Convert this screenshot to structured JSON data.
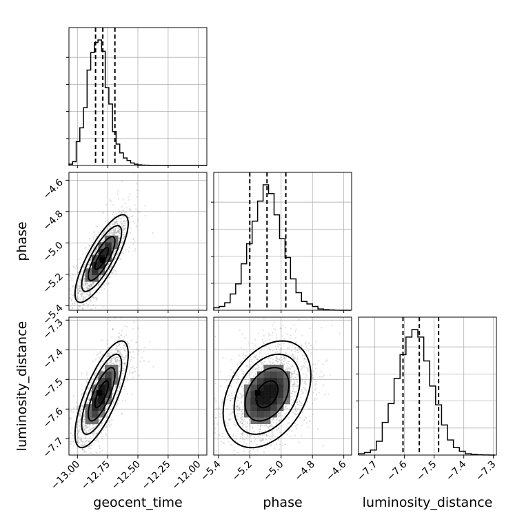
{
  "chart_data": {
    "type": "corner",
    "parameters": [
      "geocent_time",
      "phase",
      "luminosity_distance"
    ],
    "grid": true,
    "ranges": {
      "geocent_time": [
        -13.07,
        -11.93
      ],
      "phase": [
        -5.43,
        -4.55
      ],
      "luminosity_distance": [
        -7.755,
        -7.29
      ]
    },
    "ticks": {
      "geocent_time": [
        "−13.00",
        "−12.75",
        "−12.50",
        "−12.25",
        "−12.00"
      ],
      "phase": [
        "−5.4",
        "−5.2",
        "−5.0",
        "−4.8",
        "−4.6"
      ],
      "luminosity_distance": [
        "−7.7",
        "−7.6",
        "−7.5",
        "−7.4",
        "−7.3"
      ]
    },
    "tick_values": {
      "geocent_time": [
        -13.0,
        -12.75,
        -12.5,
        -12.25,
        -12.0
      ],
      "phase": [
        -5.4,
        -5.2,
        -5.0,
        -4.8,
        -4.6
      ],
      "luminosity_distance": [
        -7.7,
        -7.6,
        -7.5,
        -7.4,
        -7.3
      ]
    },
    "marginals": {
      "geocent_time": {
        "bin_edges": [
          -13.07,
          -13.04,
          -13.01,
          -12.98,
          -12.95,
          -12.92,
          -12.89,
          -12.86,
          -12.83,
          -12.8,
          -12.77,
          -12.74,
          -12.71,
          -12.68,
          -12.65,
          -12.62,
          -12.59,
          -12.56,
          -12.53,
          -12.5,
          -12.47,
          -12.44,
          -12.41,
          -12.38,
          -12.35,
          -12.32,
          -12.29,
          -12.26,
          -12.23,
          -12.2,
          -12.17,
          -12.14,
          -12.11,
          -12.08,
          -12.05,
          -12.02,
          -11.99,
          -11.96,
          -11.93
        ],
        "counts": [
          0.01,
          0.03,
          0.19,
          0.3,
          0.46,
          0.76,
          0.9,
          0.98,
          1.0,
          0.91,
          0.62,
          0.49,
          0.27,
          0.17,
          0.1,
          0.06,
          0.04,
          0.02,
          0.01,
          0.005,
          0.003,
          0.002,
          0.001,
          0.0005,
          0.0003,
          0,
          0,
          0,
          0,
          0,
          0,
          0,
          0,
          0,
          0,
          0,
          0,
          0
        ],
        "quantiles": [
          -12.85,
          -12.79,
          -12.69
        ]
      },
      "phase": {
        "bin_edges": [
          -5.43,
          -5.395,
          -5.36,
          -5.325,
          -5.29,
          -5.255,
          -5.22,
          -5.185,
          -5.15,
          -5.115,
          -5.08,
          -5.045,
          -5.01,
          -4.975,
          -4.94,
          -4.905,
          -4.87,
          -4.835,
          -4.8,
          -4.765,
          -4.73,
          -4.695,
          -4.66,
          -4.625,
          -4.59,
          -4.555
        ],
        "counts": [
          0.02,
          0.03,
          0.06,
          0.13,
          0.21,
          0.37,
          0.53,
          0.71,
          0.87,
          1.0,
          0.93,
          0.76,
          0.57,
          0.42,
          0.25,
          0.14,
          0.07,
          0.05,
          0.03,
          0.01,
          0.005,
          0.003,
          0.001,
          0.0,
          0.0
        ],
        "quantiles": [
          -5.2,
          -5.09,
          -4.97
        ]
      },
      "luminosity_distance": {
        "bin_edges": [
          -7.755,
          -7.735,
          -7.715,
          -7.695,
          -7.675,
          -7.655,
          -7.635,
          -7.615,
          -7.595,
          -7.575,
          -7.555,
          -7.535,
          -7.515,
          -7.495,
          -7.475,
          -7.455,
          -7.435,
          -7.415,
          -7.395,
          -7.375,
          -7.355,
          -7.335,
          -7.315,
          -7.295
        ],
        "counts": [
          0.01,
          0.02,
          0.04,
          0.11,
          0.26,
          0.41,
          0.61,
          0.8,
          0.94,
          1.0,
          0.94,
          0.75,
          0.55,
          0.4,
          0.24,
          0.12,
          0.06,
          0.03,
          0.01,
          0.005,
          0.002,
          0.001,
          0.0
        ],
        "quantiles": [
          -7.605,
          -7.55,
          -7.485
        ]
      }
    },
    "joints": [
      {
        "x": "geocent_time",
        "y": "phase",
        "mean": [
          -12.8,
          -5.1
        ],
        "std": [
          0.11,
          0.14
        ],
        "corr": 0.8,
        "peak": [
          -12.79,
          -5.11
        ],
        "contours_sigma": [
          0.5,
          1.0,
          1.5,
          2.0
        ]
      },
      {
        "x": "geocent_time",
        "y": "luminosity_distance",
        "mean": [
          -12.8,
          -7.55
        ],
        "std": [
          0.11,
          0.09
        ],
        "corr": 0.75,
        "peak": [
          -12.82,
          -7.545
        ],
        "contours_sigma": [
          0.5,
          1.0,
          1.5,
          2.0
        ]
      },
      {
        "x": "phase",
        "y": "luminosity_distance",
        "mean": [
          -5.09,
          -7.55
        ],
        "std": [
          0.14,
          0.09
        ],
        "corr": 0.35,
        "peak": [
          -5.15,
          -7.545
        ],
        "contours_sigma": [
          0.5,
          1.0,
          1.5,
          2.0
        ]
      }
    ],
    "colors": {
      "line": "#000000",
      "grid": "#b0b0b0",
      "scatter": "#6f6f6f"
    }
  }
}
